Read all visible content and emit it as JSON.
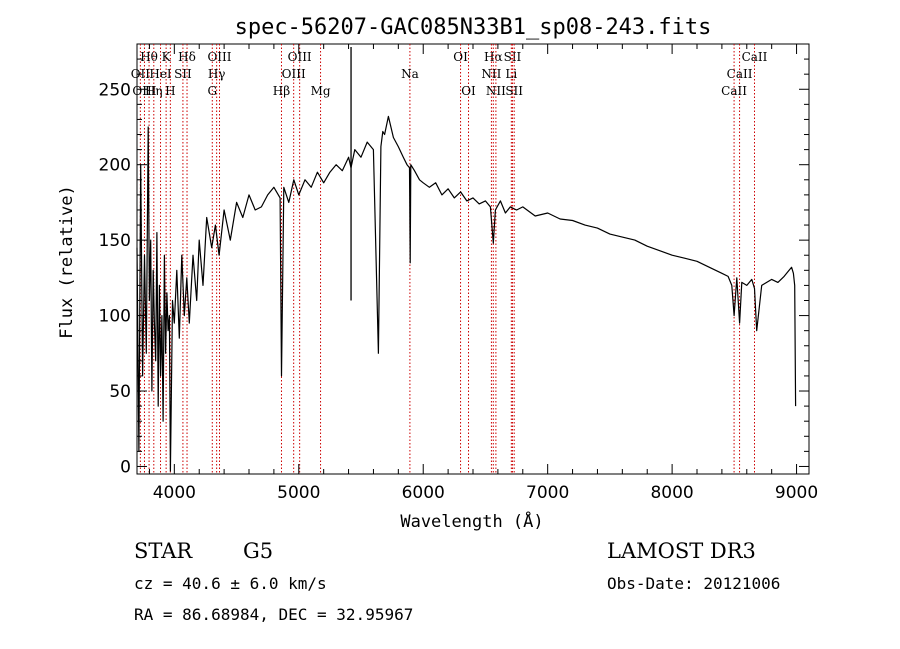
{
  "chart_data": {
    "type": "line",
    "title": "spec-56207-GAC085N33B1_sp08-243.fits",
    "xlabel": "Wavelength (Å)",
    "ylabel": "Flux (relative)",
    "xlim": [
      3700,
      9100
    ],
    "ylim": [
      -5,
      280
    ],
    "xticks": [
      4000,
      5000,
      6000,
      7000,
      8000,
      9000
    ],
    "yticks": [
      0,
      50,
      100,
      150,
      200,
      250
    ],
    "series": [
      {
        "name": "spectrum",
        "x": [
          3700,
          3715,
          3730,
          3745,
          3760,
          3775,
          3790,
          3800,
          3810,
          3820,
          3830,
          3840,
          3850,
          3860,
          3870,
          3880,
          3890,
          3900,
          3910,
          3920,
          3930,
          3940,
          3950,
          3960,
          3968,
          3975,
          3985,
          4000,
          4020,
          4040,
          4060,
          4080,
          4100,
          4120,
          4150,
          4180,
          4200,
          4230,
          4260,
          4300,
          4330,
          4360,
          4400,
          4450,
          4500,
          4550,
          4600,
          4650,
          4700,
          4750,
          4800,
          4850,
          4861,
          4880,
          4920,
          4960,
          5000,
          5050,
          5100,
          5150,
          5200,
          5250,
          5300,
          5350,
          5400,
          5420,
          5450,
          5500,
          5550,
          5600,
          5640,
          5660,
          5675,
          5690,
          5720,
          5760,
          5800,
          5840,
          5870,
          5890,
          5895,
          5900,
          5930,
          5970,
          6000,
          6050,
          6100,
          6150,
          6200,
          6250,
          6300,
          6350,
          6400,
          6450,
          6500,
          6540,
          6563,
          6580,
          6620,
          6660,
          6700,
          6750,
          6800,
          6900,
          7000,
          7100,
          7200,
          7300,
          7400,
          7500,
          7600,
          7700,
          7800,
          7900,
          8000,
          8100,
          8200,
          8300,
          8400,
          8450,
          8480,
          8498,
          8520,
          8542,
          8560,
          8600,
          8640,
          8662,
          8680,
          8720,
          8760,
          8800,
          8850,
          8900,
          8940,
          8960,
          8975,
          8985,
          8992
        ],
        "y": [
          145,
          10,
          200,
          60,
          140,
          75,
          225,
          110,
          150,
          50,
          130,
          95,
          70,
          155,
          40,
          120,
          60,
          100,
          30,
          140,
          75,
          115,
          90,
          100,
          -3,
          40,
          110,
          95,
          130,
          85,
          140,
          100,
          125,
          95,
          140,
          110,
          150,
          120,
          165,
          145,
          160,
          140,
          170,
          150,
          175,
          165,
          180,
          170,
          172,
          180,
          185,
          178,
          60,
          185,
          175,
          190,
          180,
          190,
          185,
          195,
          188,
          195,
          200,
          196,
          205,
          198,
          210,
          205,
          215,
          210,
          75,
          212,
          222,
          220,
          232,
          218,
          212,
          205,
          200,
          198,
          135,
          200,
          196,
          190,
          188,
          185,
          188,
          180,
          184,
          178,
          182,
          176,
          178,
          174,
          176,
          172,
          148,
          170,
          176,
          168,
          172,
          170,
          172,
          166,
          168,
          164,
          163,
          160,
          158,
          154,
          152,
          150,
          146,
          143,
          140,
          138,
          136,
          132,
          128,
          126,
          120,
          100,
          125,
          95,
          122,
          120,
          124,
          118,
          90,
          120,
          122,
          124,
          122,
          126,
          130,
          132,
          128,
          120,
          40
        ]
      }
    ],
    "line_markers": [
      {
        "label": "Hθ",
        "x": 3797,
        "row": 0
      },
      {
        "label": "OII",
        "x": 3727,
        "row": 1
      },
      {
        "label": "OIII",
        "x": 3760,
        "row": 2
      },
      {
        "label": "K",
        "x": 3934,
        "row": 0
      },
      {
        "label": "HeI",
        "x": 3889,
        "row": 1
      },
      {
        "label": "Hη",
        "x": 3835,
        "row": 2
      },
      {
        "label": "Hδ",
        "x": 4102,
        "row": 0
      },
      {
        "label": "SII",
        "x": 4069,
        "row": 1
      },
      {
        "label": "H",
        "x": 3968,
        "row": 2
      },
      {
        "label": "OIII",
        "x": 4363,
        "row": 0
      },
      {
        "label": "Hγ",
        "x": 4340,
        "row": 1
      },
      {
        "label": "G",
        "x": 4305,
        "row": 2
      },
      {
        "label": "OIII",
        "x": 5007,
        "row": 0
      },
      {
        "label": "OIII",
        "x": 4959,
        "row": 1
      },
      {
        "label": "Hβ",
        "x": 4861,
        "row": 2
      },
      {
        "label": "Mg",
        "x": 5175,
        "row": 2
      },
      {
        "label": "Na",
        "x": 5893,
        "row": 1
      },
      {
        "label": "OI",
        "x": 6300,
        "row": 0
      },
      {
        "label": "OI",
        "x": 6364,
        "row": 2
      },
      {
        "label": "Hα",
        "x": 6563,
        "row": 0
      },
      {
        "label": "SII",
        "x": 6717,
        "row": 0
      },
      {
        "label": "NII",
        "x": 6548,
        "row": 1
      },
      {
        "label": "Li",
        "x": 6708,
        "row": 1
      },
      {
        "label": "NII",
        "x": 6584,
        "row": 2
      },
      {
        "label": "SII",
        "x": 6731,
        "row": 2
      },
      {
        "label": "CaII",
        "x": 8662,
        "row": 0
      },
      {
        "label": "CaII",
        "x": 8542,
        "row": 1
      },
      {
        "label": "CaII",
        "x": 8498,
        "row": 2
      }
    ]
  },
  "info": {
    "object_class": "STAR",
    "subclass": "G5",
    "survey": "LAMOST DR3",
    "cz": "cz = 40.6 ± 6.0 km/s",
    "obs_date": "Obs-Date: 20121006",
    "coords": "RA =  86.68984, DEC =  32.95967"
  },
  "colors": {
    "axes": "#000000",
    "line": "#000000",
    "marker": "#cc0000",
    "background": "#ffffff"
  }
}
